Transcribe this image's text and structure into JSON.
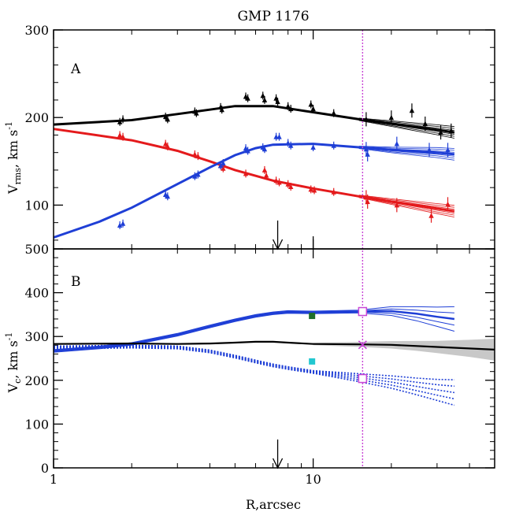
{
  "title": "GMP 1176",
  "colors": {
    "black": "#000000",
    "red": "#e41a1c",
    "blue": "#1f3fd6",
    "gray_band": "#c8c8c8",
    "green_marker": "#1e6e2a",
    "cyan_marker": "#22c7d0",
    "magenta": "#c846d6"
  },
  "chart_data": [
    {
      "panel": "A",
      "type": "scatter",
      "xscale": "log",
      "xlim": [
        1,
        40
      ],
      "ylim": [
        50,
        300
      ],
      "ylabel": "V_rms, km s^-1",
      "yticks": [
        100,
        200,
        300
      ],
      "marker": {
        "x": 7.3
      },
      "series": [
        {
          "color": "black",
          "points": [
            [
              1.8,
              195
            ],
            [
              1.85,
              198
            ],
            [
              2.7,
              201
            ],
            [
              2.75,
              198
            ],
            [
              3.5,
              207
            ],
            [
              3.55,
              205
            ],
            [
              4.4,
              212
            ],
            [
              4.45,
              209
            ],
            [
              5.5,
              224
            ],
            [
              5.6,
              222
            ],
            [
              6.4,
              225
            ],
            [
              6.5,
              220
            ],
            [
              7.2,
              222
            ],
            [
              7.3,
              218
            ],
            [
              8.0,
              213
            ],
            [
              8.2,
              210
            ],
            [
              9.8,
              215
            ],
            [
              10.0,
              210
            ],
            [
              12.0,
              205
            ],
            [
              16.0,
              198
            ],
            [
              20.0,
              200
            ],
            [
              24.0,
              208
            ],
            [
              27.0,
              193
            ],
            [
              31.0,
              183
            ],
            [
              34.0,
              185
            ]
          ],
          "model": [
            [
              1,
              192
            ],
            [
              2,
              197
            ],
            [
              3,
              204
            ],
            [
              4,
              209
            ],
            [
              5,
              213
            ],
            [
              7,
              213
            ],
            [
              10,
              206
            ],
            [
              15,
              198
            ],
            [
              20,
              193
            ],
            [
              30,
              186
            ],
            [
              35,
              183
            ]
          ]
        },
        {
          "color": "red",
          "points": [
            [
              1.8,
              180
            ],
            [
              1.85,
              178
            ],
            [
              2.7,
              170
            ],
            [
              2.75,
              167
            ],
            [
              3.5,
              158
            ],
            [
              3.6,
              156
            ],
            [
              4.4,
              145
            ],
            [
              4.5,
              142
            ],
            [
              5.5,
              136
            ],
            [
              6.5,
              140
            ],
            [
              6.6,
              134
            ],
            [
              7.2,
              128
            ],
            [
              7.4,
              126
            ],
            [
              8.0,
              124
            ],
            [
              8.2,
              121
            ],
            [
              9.8,
              118
            ],
            [
              10.1,
              117
            ],
            [
              12.0,
              115
            ],
            [
              16.0,
              109
            ],
            [
              16.2,
              104
            ],
            [
              21.0,
              100
            ],
            [
              28.5,
              88
            ],
            [
              33.0,
              101
            ]
          ],
          "model": [
            [
              1,
              187
            ],
            [
              2,
              174
            ],
            [
              3,
              162
            ],
            [
              4,
              150
            ],
            [
              5,
              140
            ],
            [
              7,
              128
            ],
            [
              10,
              119
            ],
            [
              15,
              110
            ],
            [
              20,
              104
            ],
            [
              30,
              96
            ],
            [
              35,
              93
            ]
          ]
        },
        {
          "color": "blue",
          "points": [
            [
              1.8,
              77
            ],
            [
              1.85,
              79
            ],
            [
              2.7,
              112
            ],
            [
              2.75,
              110
            ],
            [
              3.5,
              133
            ],
            [
              3.6,
              135
            ],
            [
              4.4,
              145
            ],
            [
              4.5,
              148
            ],
            [
              5.5,
              165
            ],
            [
              5.6,
              162
            ],
            [
              6.4,
              166
            ],
            [
              6.5,
              164
            ],
            [
              7.2,
              178
            ],
            [
              7.4,
              178
            ],
            [
              8.0,
              171
            ],
            [
              8.2,
              168
            ],
            [
              10.0,
              166
            ],
            [
              12.0,
              168
            ],
            [
              16.0,
              164
            ],
            [
              16.2,
              158
            ],
            [
              21.0,
              170
            ],
            [
              28.0,
              163
            ],
            [
              33.0,
              163
            ]
          ],
          "model": [
            [
              1,
              63
            ],
            [
              1.5,
              81
            ],
            [
              2,
              97
            ],
            [
              3,
              124
            ],
            [
              4,
              143
            ],
            [
              5,
              157
            ],
            [
              6,
              165
            ],
            [
              7,
              169
            ],
            [
              10,
              170
            ],
            [
              15,
              166
            ],
            [
              20,
              163
            ],
            [
              30,
              160
            ],
            [
              35,
              158
            ]
          ]
        }
      ]
    },
    {
      "panel": "B",
      "type": "line",
      "xscale": "log",
      "xlim": [
        1,
        50
      ],
      "ylim": [
        0,
        500
      ],
      "xlabel": "R,arcsec",
      "ylabel": "V_c, km s^-1",
      "yticks": [
        0,
        100,
        200,
        300,
        400,
        500
      ],
      "xtick_labels": [
        1,
        10
      ],
      "marker": {
        "x": 7.3
      },
      "vline_x": 15.5,
      "series": [
        {
          "color": "blue",
          "style": "solid",
          "values": [
            [
              1,
              267
            ],
            [
              1.5,
              275
            ],
            [
              2,
              283
            ],
            [
              3,
              304
            ],
            [
              4,
              323
            ],
            [
              5,
              337
            ],
            [
              6,
              347
            ],
            [
              7,
              353
            ],
            [
              8,
              356
            ],
            [
              10,
              355
            ],
            [
              15,
              357
            ],
            [
              20,
              358
            ],
            [
              25,
              352
            ],
            [
              30,
              345
            ],
            [
              35,
              340
            ]
          ]
        },
        {
          "color": "blue",
          "style": "dotted",
          "values": [
            [
              1,
              275
            ],
            [
              2,
              277
            ],
            [
              3,
              275
            ],
            [
              4,
              266
            ],
            [
              5,
              254
            ],
            [
              6,
              243
            ],
            [
              7,
              234
            ],
            [
              8,
              228
            ],
            [
              10,
              219
            ],
            [
              15,
              206
            ],
            [
              20,
              196
            ],
            [
              25,
              186
            ],
            [
              30,
              178
            ],
            [
              35,
              172
            ]
          ]
        },
        {
          "color": "black",
          "style": "solid",
          "values": [
            [
              1,
              283
            ],
            [
              2,
              284
            ],
            [
              3,
              283
            ],
            [
              4,
              284
            ],
            [
              5,
              286
            ],
            [
              6,
              288
            ],
            [
              7,
              288
            ],
            [
              8,
              286
            ],
            [
              10,
              283
            ],
            [
              15,
              282
            ],
            [
              20,
              281
            ],
            [
              30,
              276
            ],
            [
              50,
              270
            ]
          ]
        }
      ],
      "points": [
        {
          "x": 9.9,
          "y": 347,
          "color": "green_marker",
          "shape": "filled-square"
        },
        {
          "x": 9.9,
          "y": 243,
          "color": "cyan_marker",
          "shape": "filled-square"
        },
        {
          "x": 15.5,
          "y": 357,
          "color": "magenta",
          "shape": "open-square"
        },
        {
          "x": 15.5,
          "y": 204,
          "color": "magenta",
          "shape": "open-square"
        },
        {
          "x": 15.5,
          "y": 281,
          "color": "magenta",
          "shape": "cross"
        }
      ]
    }
  ]
}
